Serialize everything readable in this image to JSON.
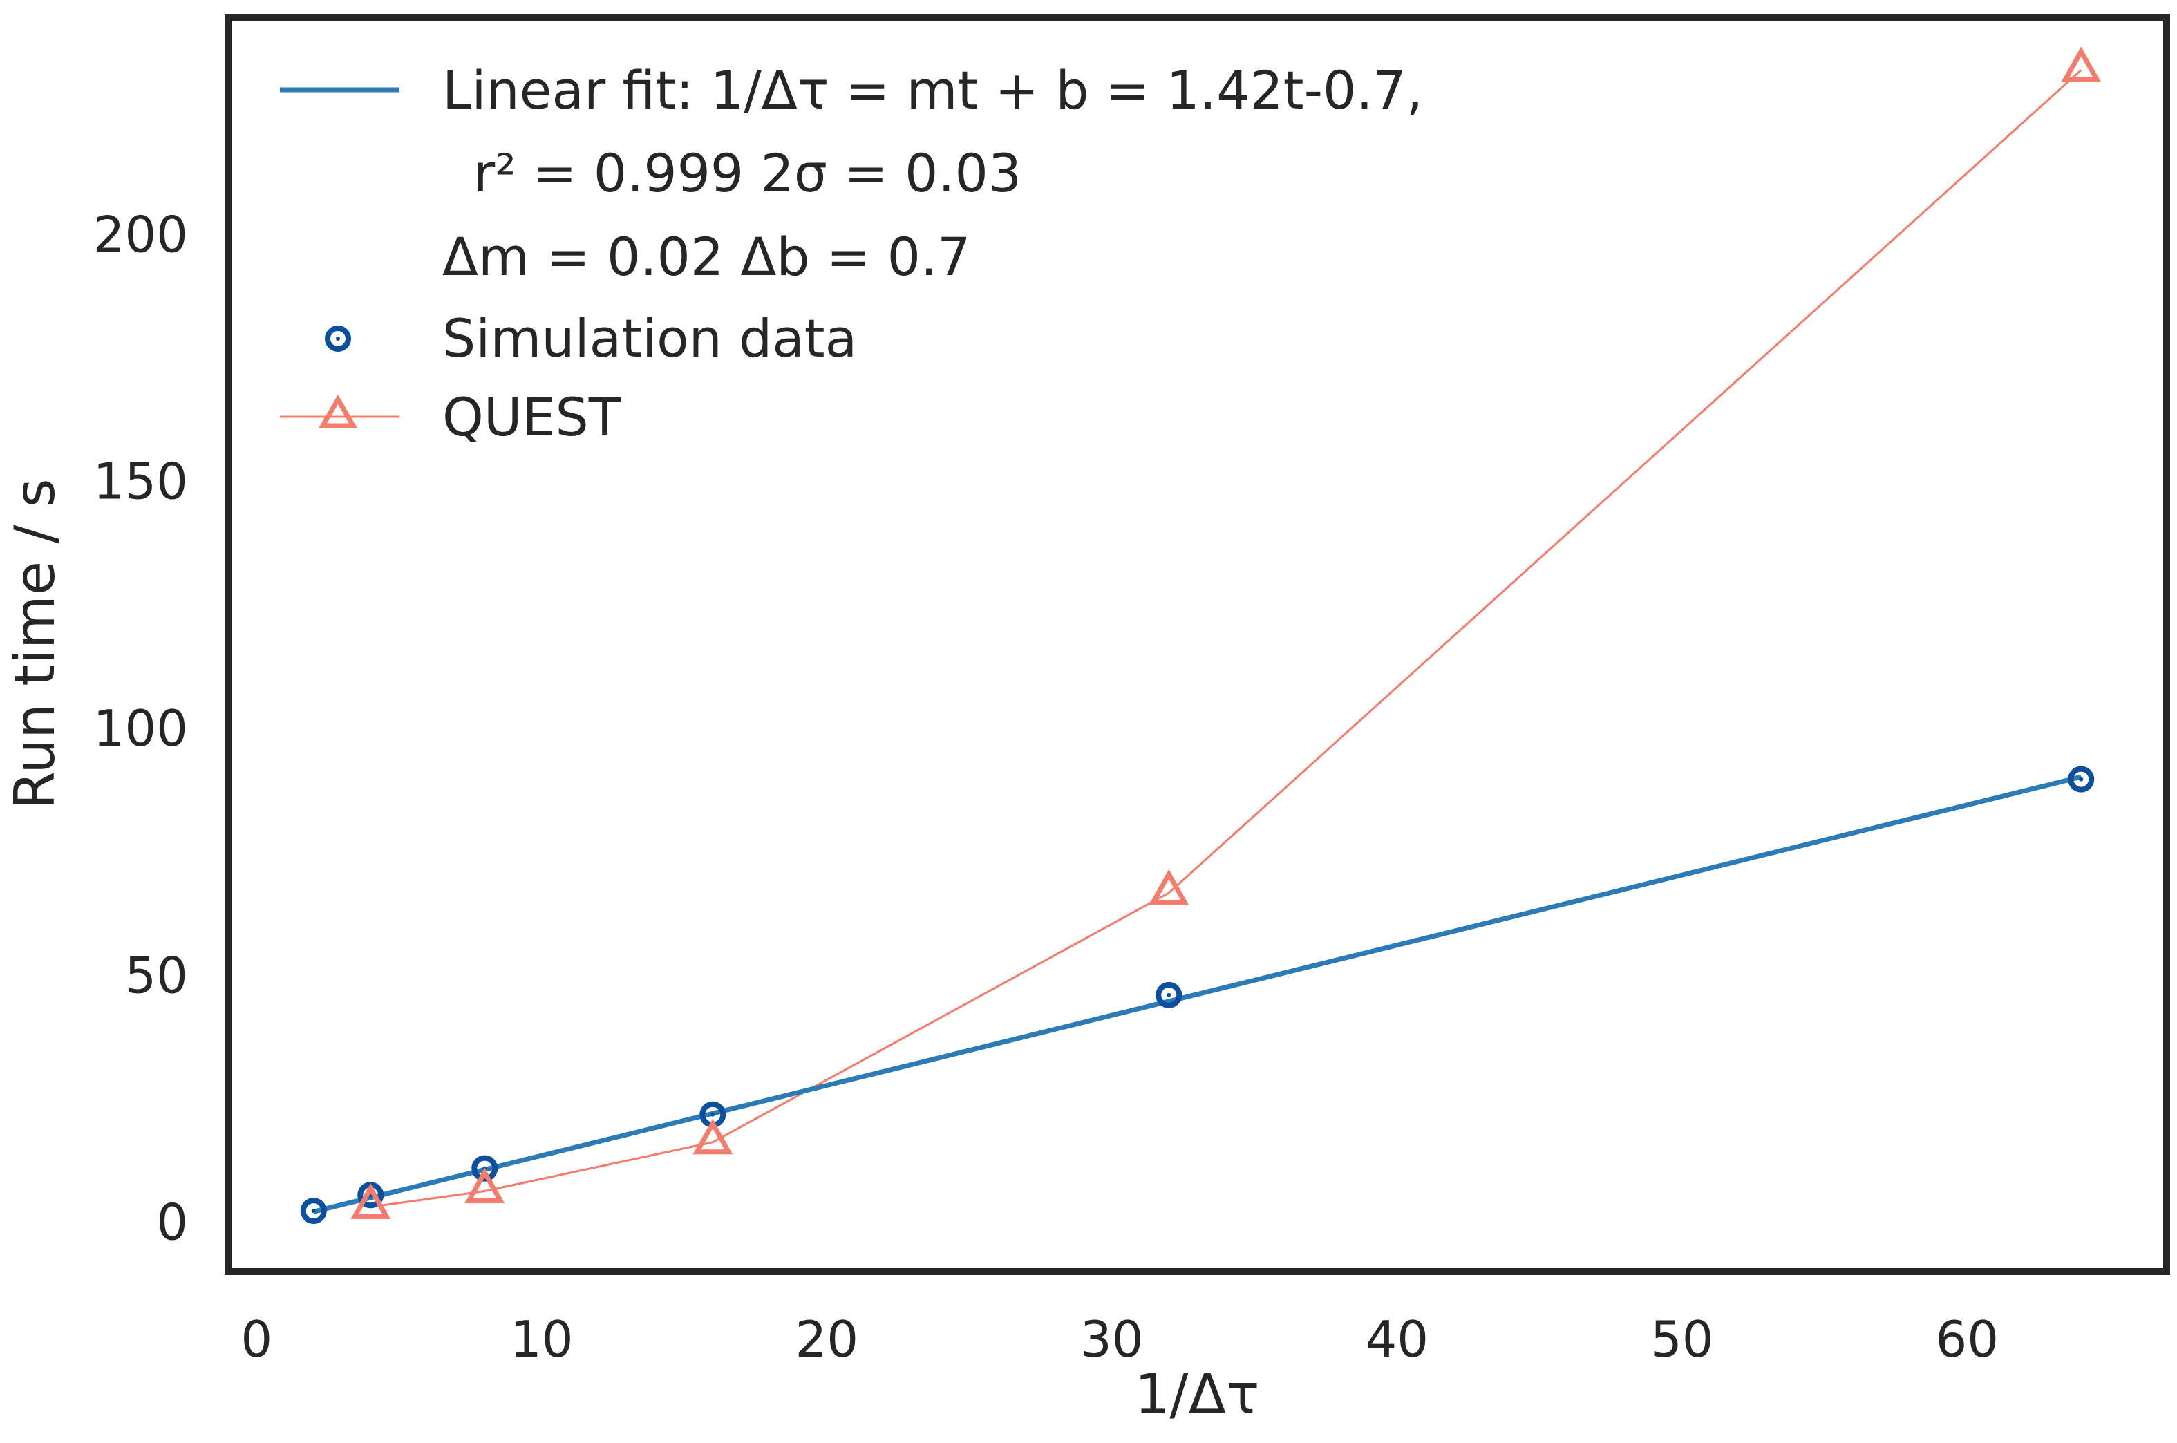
{
  "chart_data": {
    "type": "line",
    "xlabel": "1/Δτ",
    "ylabel": "Run time / s",
    "xlim": [
      -1,
      67
    ],
    "ylim": [
      -10,
      244
    ],
    "xticks": [
      0,
      10,
      20,
      30,
      40,
      50,
      60
    ],
    "yticks": [
      0,
      50,
      100,
      150,
      200
    ],
    "grid": false,
    "legend_position": "top-left",
    "legend": {
      "fit_label_lines": [
        "Linear fit: 1/Δτ = mt + b = 1.42t-0.7,",
        "r² = 0.999  2σ = 0.03",
        "Δm = 0.02  Δb = 0.7"
      ],
      "simulation_label": "Simulation data",
      "quest_label": "QUEST"
    },
    "series": [
      {
        "name": "Linear fit",
        "style": "line",
        "color": "#2c7bb6",
        "x": [
          2,
          64
        ],
        "y": [
          2.14,
          90.18
        ]
      },
      {
        "name": "Simulation data",
        "style": "markers-circle",
        "color": "#0b4f9e",
        "x": [
          2,
          4,
          8,
          16,
          32,
          64
        ],
        "y": [
          2.3,
          5.5,
          10.9,
          21.8,
          46.0,
          89.7
        ]
      },
      {
        "name": "QUEST",
        "style": "line-triangle",
        "color": "#f47c6d",
        "x": [
          4,
          8,
          16,
          32,
          64
        ],
        "y": [
          3.1,
          6.3,
          16.2,
          66.7,
          233.3
        ]
      }
    ]
  }
}
